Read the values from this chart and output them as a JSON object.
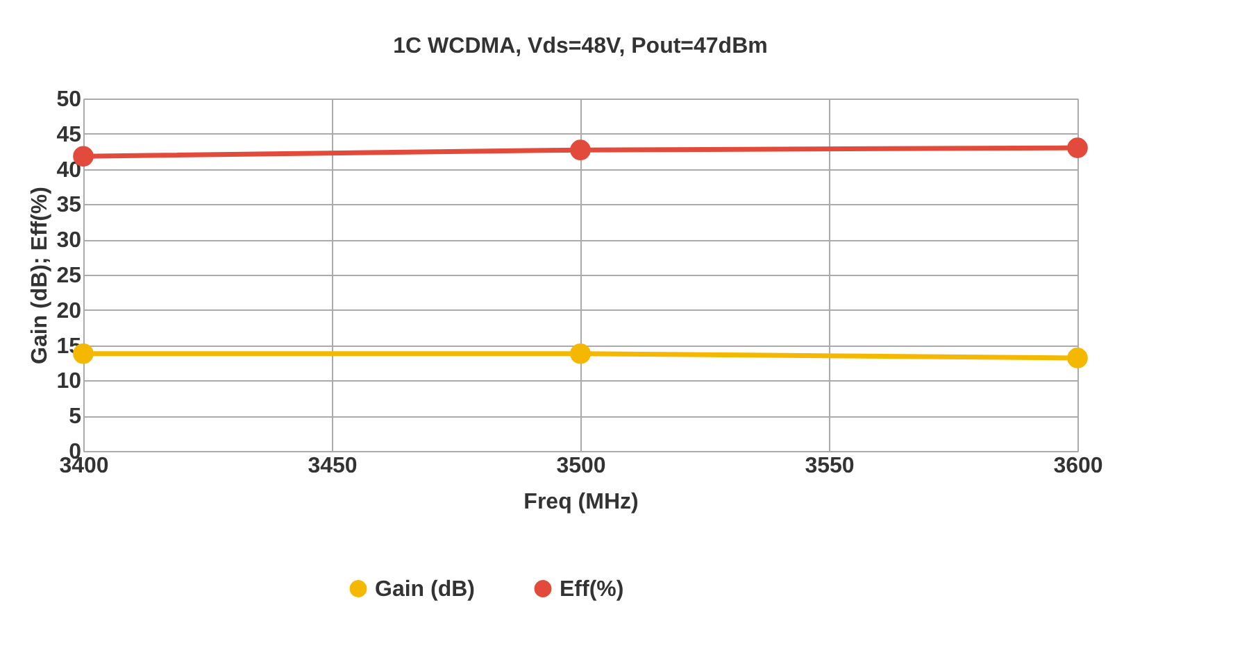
{
  "chart_data": {
    "type": "line",
    "title": "1C WCDMA, Vds=48V, Pout=47dBm",
    "xlabel": "Freq (MHz)",
    "ylabel": "Gain (dB); Eff(%)",
    "x": [
      3400,
      3500,
      3600
    ],
    "series": [
      {
        "name": "Gain (dB)",
        "color": "#f5b800",
        "values": [
          13.8,
          13.8,
          13.2
        ]
      },
      {
        "name": "Eff(%)",
        "color": "#e24b3b",
        "values": [
          41.8,
          42.7,
          43.0
        ]
      }
    ],
    "xlim": [
      3400,
      3600
    ],
    "xticks": [
      3400,
      3450,
      3500,
      3550,
      3600
    ],
    "ylim": [
      0,
      50
    ],
    "yticks": [
      0,
      5,
      10,
      15,
      20,
      25,
      30,
      35,
      40,
      45,
      50
    ],
    "grid": true,
    "legend": "bottom",
    "marker": "circle",
    "line_style": "solid"
  }
}
